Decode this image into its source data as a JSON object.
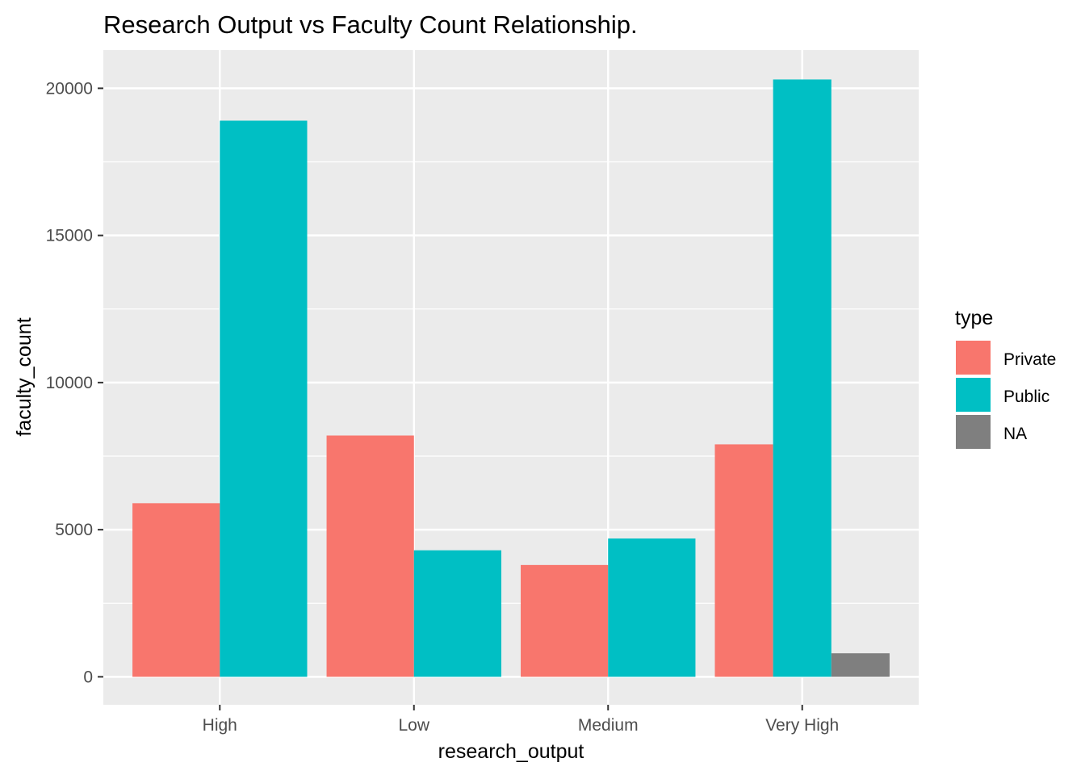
{
  "chart_data": {
    "type": "bar",
    "title": "Research Output vs Faculty Count Relationship.",
    "xlabel": "research_output",
    "ylabel": "faculty_count",
    "categories": [
      "High",
      "Low",
      "Medium",
      "Very High"
    ],
    "y_ticks": [
      0,
      5000,
      10000,
      15000,
      20000
    ],
    "ylim": [
      -950,
      21300
    ],
    "grid": true,
    "legend": {
      "title": "type",
      "placement": "right",
      "entries": [
        {
          "label": "Private",
          "color": "#F8766D"
        },
        {
          "label": "Public",
          "color": "#00BFC4"
        },
        {
          "label": "NA",
          "color": "#7F7F7F"
        }
      ]
    },
    "series": [
      {
        "name": "Private",
        "color": "#F8766D",
        "values": [
          5900,
          8200,
          3800,
          7900
        ]
      },
      {
        "name": "Public",
        "color": "#00BFC4",
        "values": [
          18900,
          4300,
          4700,
          20300
        ]
      },
      {
        "name": "NA",
        "color": "#7F7F7F",
        "values": [
          null,
          null,
          null,
          800
        ]
      }
    ]
  }
}
